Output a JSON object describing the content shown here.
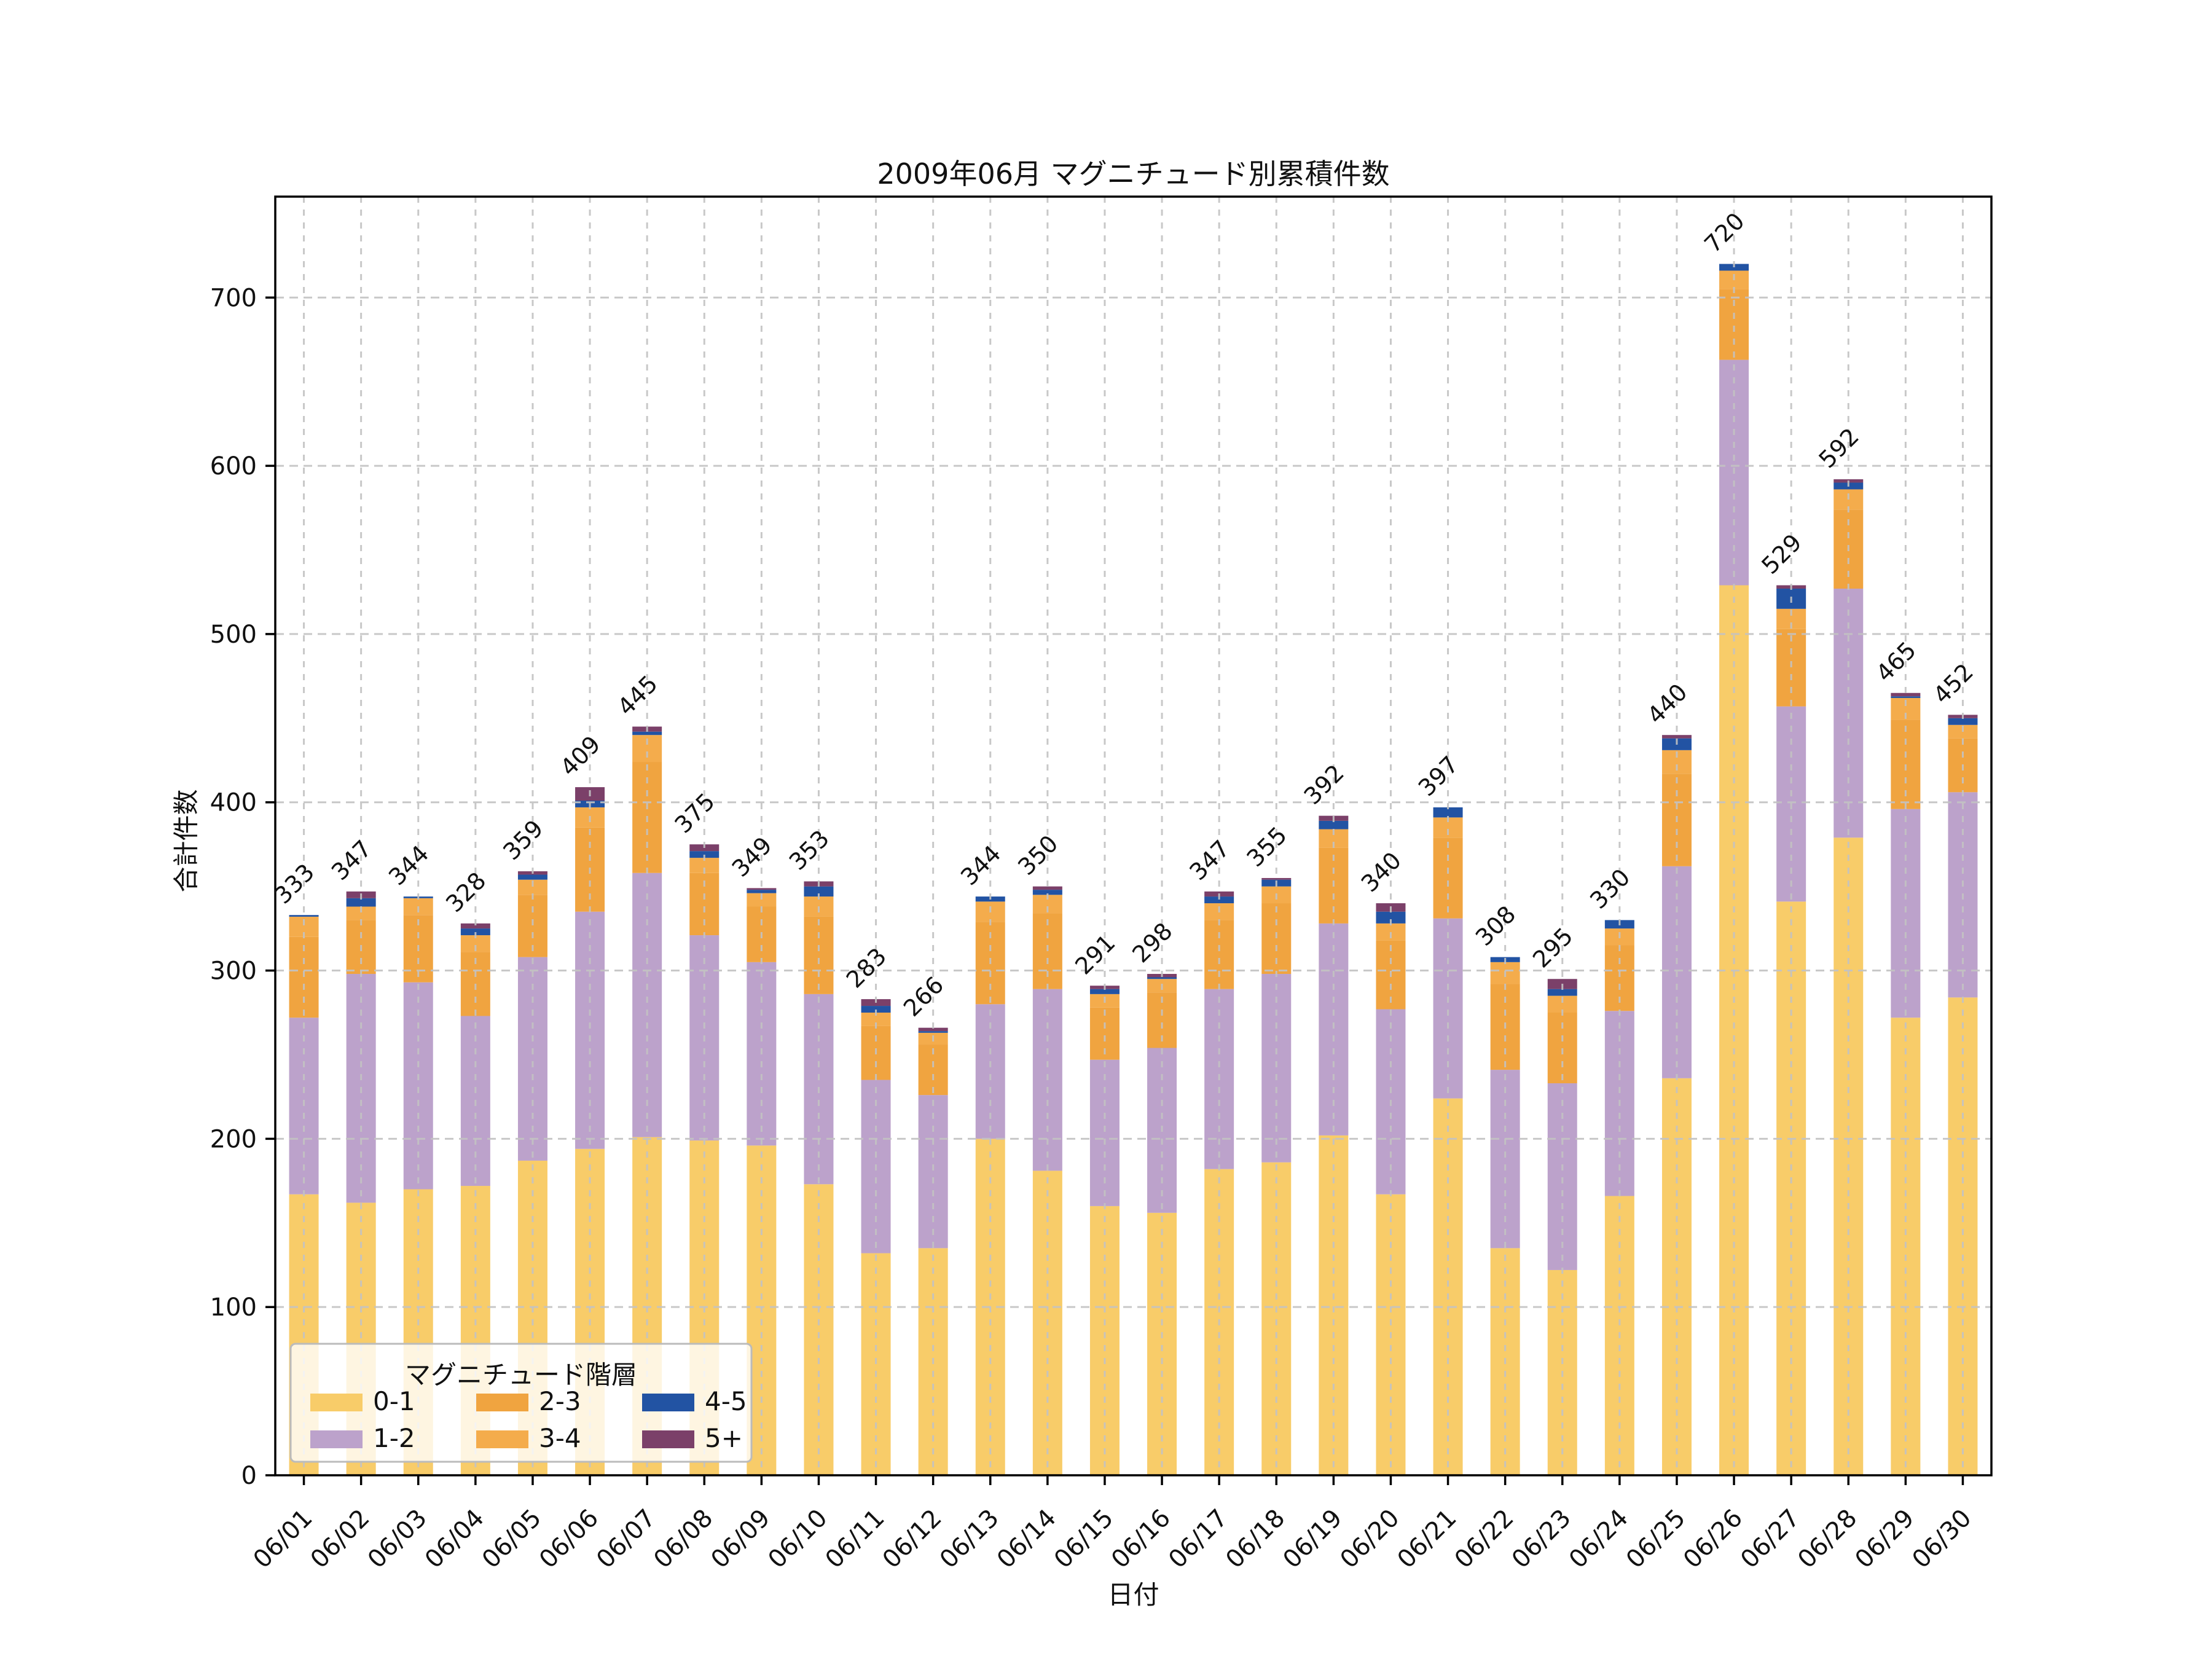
{
  "chart_data": {
    "type": "bar",
    "stacked": true,
    "title": "2009年06月 マグニチュード別累積件数",
    "xlabel": "日付",
    "ylabel": "合計件数",
    "legend_title": "マグニチュード階層",
    "legend_position": "lower left",
    "grid": "dashed gridlines drawn over bars",
    "background_color": "#ffffff",
    "gridline_color": "#c3c3c3",
    "ylim": [
      0,
      760
    ],
    "yticks": [
      0,
      100,
      200,
      300,
      400,
      500,
      600,
      700
    ],
    "categories": [
      "06/01",
      "06/02",
      "06/03",
      "06/04",
      "06/05",
      "06/06",
      "06/07",
      "06/08",
      "06/09",
      "06/10",
      "06/11",
      "06/12",
      "06/13",
      "06/14",
      "06/15",
      "06/16",
      "06/17",
      "06/18",
      "06/19",
      "06/20",
      "06/21",
      "06/22",
      "06/23",
      "06/24",
      "06/25",
      "06/26",
      "06/27",
      "06/28",
      "06/29",
      "06/30"
    ],
    "totals": [
      333,
      347,
      344,
      328,
      359,
      409,
      445,
      375,
      349,
      353,
      283,
      266,
      344,
      350,
      291,
      298,
      347,
      355,
      392,
      340,
      397,
      308,
      295,
      330,
      440,
      720,
      529,
      592,
      465,
      452
    ],
    "series": [
      {
        "name": "0-1",
        "color": "#F8CC69",
        "values": [
          167,
          162,
          170,
          172,
          187,
          194,
          201,
          199,
          196,
          173,
          132,
          135,
          200,
          181,
          160,
          156,
          182,
          186,
          202,
          167,
          224,
          135,
          122,
          166,
          236,
          529,
          341,
          379,
          272,
          284
        ]
      },
      {
        "name": "1-2",
        "color": "#BCA2CB",
        "values": [
          105,
          136,
          123,
          101,
          121,
          141,
          157,
          122,
          109,
          113,
          103,
          91,
          80,
          108,
          87,
          98,
          107,
          112,
          126,
          110,
          107,
          106,
          111,
          110,
          126,
          134,
          116,
          148,
          124,
          122
        ]
      },
      {
        "name": "2-3",
        "color": "#F0A440",
        "values": [
          48,
          32,
          40,
          38,
          37,
          50,
          66,
          37,
          33,
          46,
          32,
          30,
          49,
          45,
          31,
          33,
          41,
          42,
          45,
          41,
          48,
          51,
          42,
          39,
          55,
          42,
          46,
          47,
          53,
          32
        ]
      },
      {
        "name": "3-4",
        "color": "#F4AC4C",
        "values": [
          12,
          8,
          10,
          10,
          9,
          12,
          16,
          9,
          8,
          12,
          8,
          7,
          12,
          11,
          8,
          8,
          10,
          10,
          11,
          10,
          12,
          13,
          10,
          10,
          14,
          11,
          12,
          12,
          13,
          8
        ]
      },
      {
        "name": "4-5",
        "color": "#2253A3",
        "values": [
          1,
          5,
          1,
          4,
          3,
          4,
          2,
          4,
          2,
          6,
          4,
          1,
          3,
          3,
          3,
          1,
          4,
          4,
          5,
          7,
          6,
          3,
          4,
          5,
          7,
          4,
          12,
          4,
          1,
          4
        ]
      },
      {
        "name": "5+",
        "color": "#7B4069",
        "values": [
          0,
          4,
          0,
          3,
          2,
          8,
          3,
          4,
          1,
          3,
          4,
          2,
          0,
          2,
          2,
          2,
          3,
          1,
          3,
          5,
          0,
          0,
          6,
          0,
          2,
          0,
          2,
          2,
          2,
          2
        ]
      }
    ]
  }
}
